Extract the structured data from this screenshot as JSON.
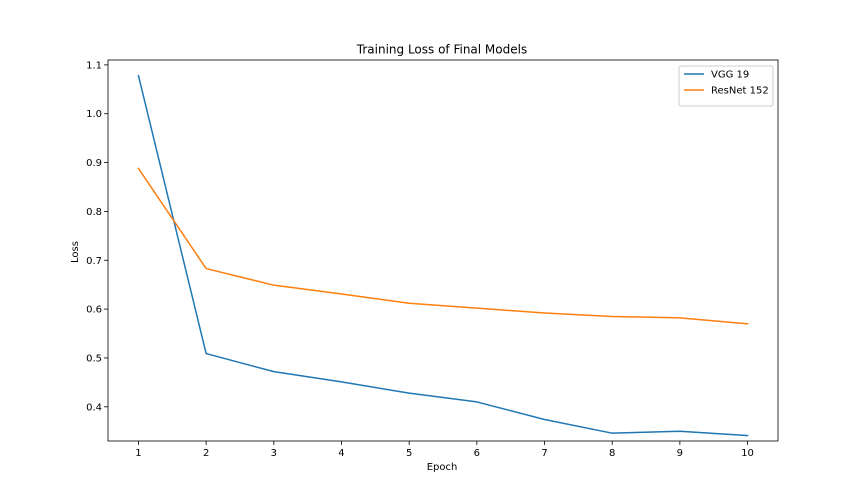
{
  "chart_data": {
    "type": "line",
    "title": "Training Loss of Final Models",
    "xlabel": "Epoch",
    "ylabel": "Loss",
    "x": [
      1,
      2,
      3,
      4,
      5,
      6,
      7,
      8,
      9,
      10
    ],
    "xticks": [
      "1",
      "2",
      "3",
      "4",
      "5",
      "6",
      "7",
      "8",
      "9",
      "10"
    ],
    "yticks": [
      "0.4",
      "0.5",
      "0.6",
      "0.7",
      "0.8",
      "0.9",
      "1.0",
      "1.1"
    ],
    "xlim": [
      0.55,
      10.45
    ],
    "ylim": [
      0.33,
      1.11
    ],
    "grid": false,
    "legend_position": "top-right",
    "series": [
      {
        "name": "VGG 19",
        "color": "#1f77b4",
        "values": [
          1.078,
          0.509,
          0.472,
          0.451,
          0.428,
          0.41,
          0.374,
          0.346,
          0.35,
          0.341
        ]
      },
      {
        "name": "ResNet 152",
        "color": "#ff7f0e",
        "values": [
          0.888,
          0.683,
          0.649,
          0.631,
          0.612,
          0.602,
          0.592,
          0.585,
          0.582,
          0.57
        ]
      }
    ]
  }
}
